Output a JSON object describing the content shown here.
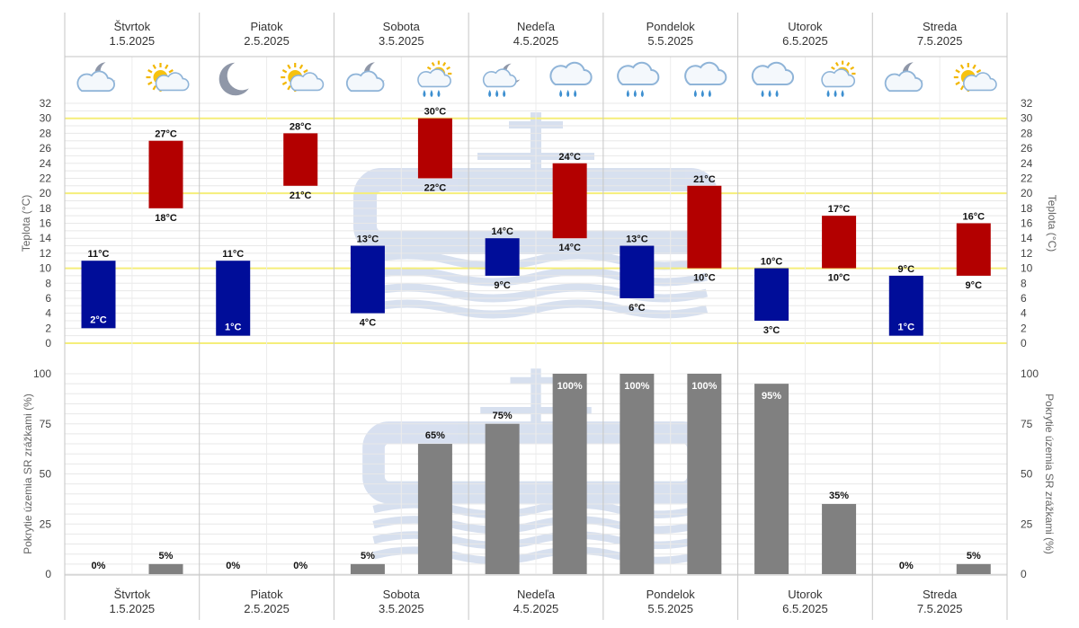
{
  "colors": {
    "min_bar": "#000d99",
    "max_bar": "#b30000",
    "precip_bar": "#808080",
    "highlight_line": "#f5ee7a",
    "grid": "#e8e8e8",
    "separator": "#c6c6c6",
    "watermark": "#b8c7e3"
  },
  "days": [
    {
      "name": "Štvrtok",
      "date": "1.5.2025",
      "icons": [
        "night-partly-cloudy-icon",
        "day-partly-cloudy-icon"
      ]
    },
    {
      "name": "Piatok",
      "date": "2.5.2025",
      "icons": [
        "night-clear-icon",
        "day-partly-cloudy-icon"
      ]
    },
    {
      "name": "Sobota",
      "date": "3.5.2025",
      "icons": [
        "night-partly-cloudy-icon",
        "day-partly-cloudy-rain-icon"
      ]
    },
    {
      "name": "Nedeľa",
      "date": "4.5.2025",
      "icons": [
        "night-partly-cloudy-rain-icon",
        "cloud-rain-icon"
      ]
    },
    {
      "name": "Pondelok",
      "date": "5.5.2025",
      "icons": [
        "cloud-rain-icon",
        "cloud-rain-icon"
      ]
    },
    {
      "name": "Utorok",
      "date": "6.5.2025",
      "icons": [
        "cloud-rain-icon",
        "day-partly-cloudy-rain-icon"
      ]
    },
    {
      "name": "Streda",
      "date": "7.5.2025",
      "icons": [
        "night-partly-cloudy-icon",
        "day-partly-cloudy-icon"
      ]
    }
  ],
  "chart_data": [
    {
      "type": "bar",
      "title": "",
      "ylabel": "Teplota (°C)",
      "ylim": [
        0,
        32
      ],
      "yticks": [
        0,
        2,
        4,
        6,
        8,
        10,
        12,
        14,
        16,
        18,
        20,
        22,
        24,
        26,
        28,
        30,
        32
      ],
      "highlight_lines": [
        0,
        10,
        20,
        30
      ],
      "grid": true,
      "unit": "°C",
      "series": [
        {
          "min": [
            2,
            1,
            4,
            9,
            6,
            3,
            1
          ],
          "max": [
            11,
            11,
            13,
            14,
            13,
            10,
            9
          ]
        },
        {
          "min": [
            18,
            21,
            22,
            14,
            10,
            10,
            9
          ],
          "max": [
            27,
            28,
            30,
            24,
            21,
            17,
            16
          ]
        }
      ]
    },
    {
      "type": "bar",
      "title": "",
      "ylabel": "Pokrytie územia SR zrážkami (%)",
      "ylim": [
        0,
        100
      ],
      "yticks": [
        0,
        25,
        50,
        75,
        100
      ],
      "grid": true,
      "unit": "%",
      "series": [
        {
          "values": [
            0,
            0,
            5,
            75,
            100,
            95,
            0
          ]
        },
        {
          "values": [
            5,
            0,
            65,
            100,
            100,
            35,
            5
          ]
        }
      ]
    }
  ]
}
